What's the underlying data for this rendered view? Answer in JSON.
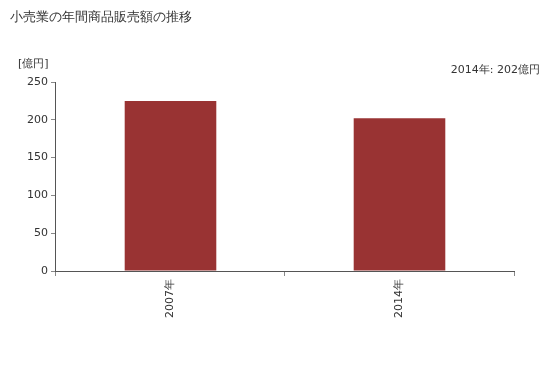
{
  "chart_data": {
    "type": "bar",
    "title": "小売業の年間商品販売額の推移",
    "y_label": "[億円]",
    "annotations": [
      "2014年: 202億円"
    ],
    "categories": [
      "2007年",
      "2014年"
    ],
    "values": [
      225,
      202
    ],
    "color": "#993333",
    "ylim": [
      0,
      250
    ],
    "yticks": [
      0,
      50,
      100,
      150,
      200,
      250
    ],
    "grid": false
  }
}
